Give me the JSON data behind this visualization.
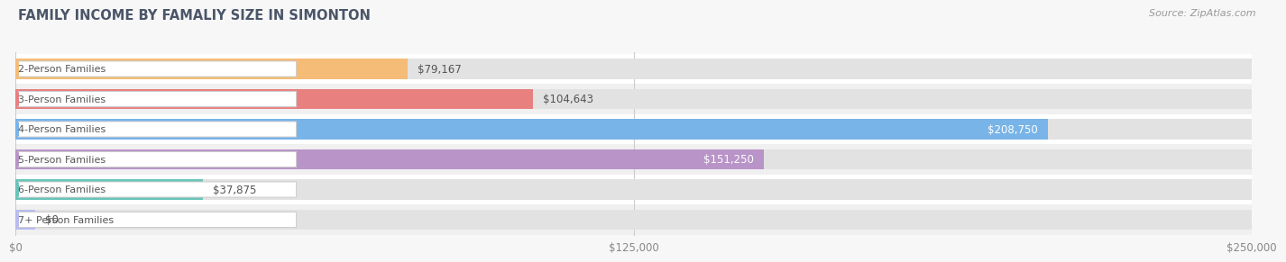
{
  "title": "FAMILY INCOME BY FAMALIY SIZE IN SIMONTON",
  "source": "Source: ZipAtlas.com",
  "categories": [
    "2-Person Families",
    "3-Person Families",
    "4-Person Families",
    "5-Person Families",
    "6-Person Families",
    "7+ Person Families"
  ],
  "values": [
    79167,
    104643,
    208750,
    151250,
    37875,
    0
  ],
  "bar_colors": [
    "#f5bc78",
    "#e88080",
    "#78b4e8",
    "#b894c8",
    "#68c4b8",
    "#b8bcf0"
  ],
  "xlim": [
    0,
    250000
  ],
  "xtick_labels": [
    "$0",
    "$125,000",
    "$250,000"
  ],
  "xtick_values": [
    0,
    125000,
    250000
  ],
  "value_labels": [
    "$79,167",
    "$104,643",
    "$208,750",
    "$151,250",
    "$37,875",
    "$0"
  ],
  "value_label_inside": [
    false,
    false,
    true,
    true,
    false,
    false
  ],
  "title_color": "#4a5568",
  "source_color": "#999999",
  "background_color": "#f7f7f7",
  "row_bg_even": "#ffffff",
  "row_bg_odd": "#f0f0f0",
  "bar_bg_color": "#e2e2e2",
  "bar_height": 0.68,
  "label_text_color": "#555555",
  "value_color_dark": "#555555",
  "value_color_light": "#ffffff"
}
